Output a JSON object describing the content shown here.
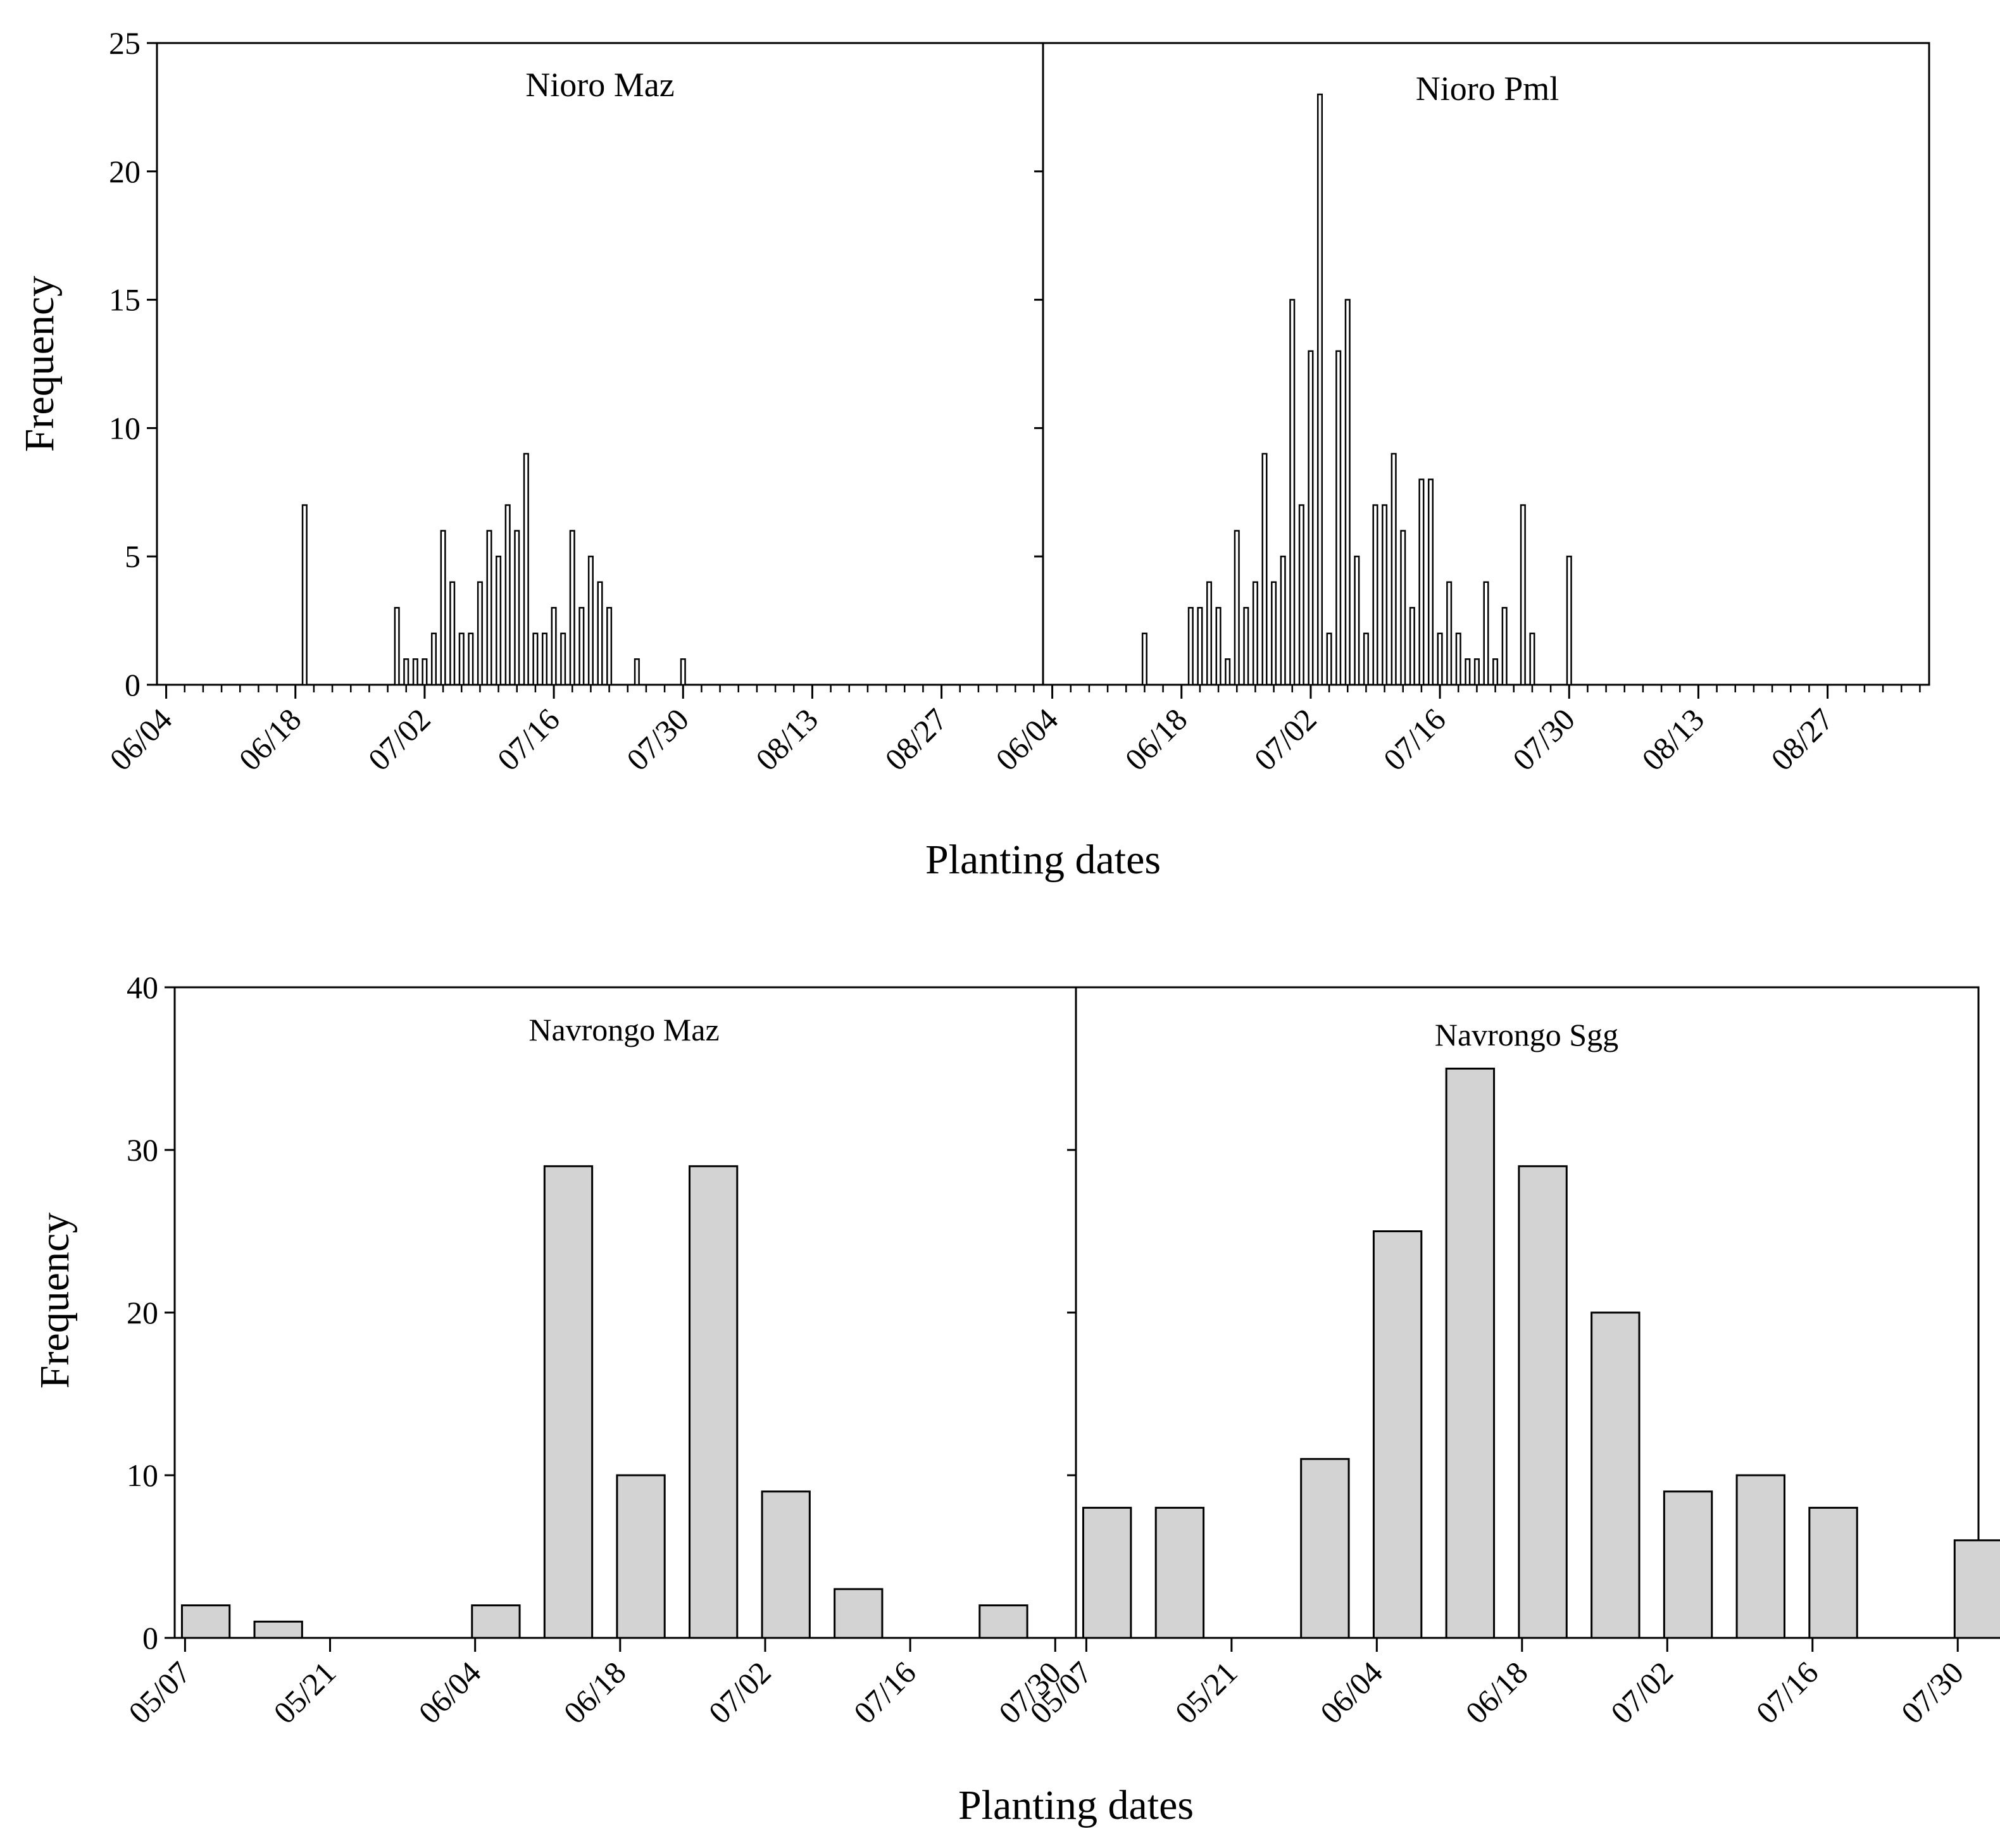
{
  "chart_data": [
    {
      "type": "bar",
      "ylabel": "Frequency",
      "xlabel": "Planting dates",
      "ylim": [
        0,
        25
      ],
      "yticks": [
        0,
        5,
        10,
        15,
        20,
        25
      ],
      "day_range": [
        154,
        250
      ],
      "x_tick_labels": [
        {
          "label": "06/04",
          "day": 155
        },
        {
          "label": "06/18",
          "day": 169
        },
        {
          "label": "07/02",
          "day": 183
        },
        {
          "label": "07/16",
          "day": 197
        },
        {
          "label": "07/30",
          "day": 211
        },
        {
          "label": "08/13",
          "day": 225
        },
        {
          "label": "08/27",
          "day": 239
        }
      ],
      "panels": [
        {
          "title": "Nioro Maz",
          "bars": [
            {
              "day": 170,
              "value": 7
            },
            {
              "day": 180,
              "value": 3
            },
            {
              "day": 181,
              "value": 1
            },
            {
              "day": 182,
              "value": 1
            },
            {
              "day": 183,
              "value": 1
            },
            {
              "day": 184,
              "value": 2
            },
            {
              "day": 185,
              "value": 6
            },
            {
              "day": 186,
              "value": 4
            },
            {
              "day": 187,
              "value": 2
            },
            {
              "day": 188,
              "value": 2
            },
            {
              "day": 189,
              "value": 4
            },
            {
              "day": 190,
              "value": 6
            },
            {
              "day": 191,
              "value": 5
            },
            {
              "day": 192,
              "value": 7
            },
            {
              "day": 193,
              "value": 6
            },
            {
              "day": 194,
              "value": 9
            },
            {
              "day": 195,
              "value": 2
            },
            {
              "day": 196,
              "value": 2
            },
            {
              "day": 197,
              "value": 3
            },
            {
              "day": 198,
              "value": 2
            },
            {
              "day": 199,
              "value": 6
            },
            {
              "day": 200,
              "value": 3
            },
            {
              "day": 201,
              "value": 5
            },
            {
              "day": 202,
              "value": 4
            },
            {
              "day": 203,
              "value": 3
            },
            {
              "day": 206,
              "value": 1
            },
            {
              "day": 211,
              "value": 1
            }
          ]
        },
        {
          "title": "Nioro Pml",
          "bars": [
            {
              "day": 165,
              "value": 2
            },
            {
              "day": 170,
              "value": 3
            },
            {
              "day": 171,
              "value": 3
            },
            {
              "day": 172,
              "value": 4
            },
            {
              "day": 173,
              "value": 3
            },
            {
              "day": 174,
              "value": 1
            },
            {
              "day": 175,
              "value": 6
            },
            {
              "day": 176,
              "value": 3
            },
            {
              "day": 177,
              "value": 4
            },
            {
              "day": 178,
              "value": 9
            },
            {
              "day": 179,
              "value": 4
            },
            {
              "day": 180,
              "value": 5
            },
            {
              "day": 181,
              "value": 15
            },
            {
              "day": 182,
              "value": 7
            },
            {
              "day": 183,
              "value": 13
            },
            {
              "day": 184,
              "value": 23
            },
            {
              "day": 185,
              "value": 2
            },
            {
              "day": 186,
              "value": 13
            },
            {
              "day": 187,
              "value": 15
            },
            {
              "day": 188,
              "value": 5
            },
            {
              "day": 189,
              "value": 2
            },
            {
              "day": 190,
              "value": 7
            },
            {
              "day": 191,
              "value": 7
            },
            {
              "day": 192,
              "value": 9
            },
            {
              "day": 193,
              "value": 6
            },
            {
              "day": 194,
              "value": 3
            },
            {
              "day": 195,
              "value": 8
            },
            {
              "day": 196,
              "value": 8
            },
            {
              "day": 197,
              "value": 2
            },
            {
              "day": 198,
              "value": 4
            },
            {
              "day": 199,
              "value": 2
            },
            {
              "day": 200,
              "value": 1
            },
            {
              "day": 201,
              "value": 1
            },
            {
              "day": 202,
              "value": 4
            },
            {
              "day": 203,
              "value": 1
            },
            {
              "day": 204,
              "value": 3
            },
            {
              "day": 206,
              "value": 7
            },
            {
              "day": 207,
              "value": 2
            },
            {
              "day": 211,
              "value": 5
            }
          ]
        }
      ]
    },
    {
      "type": "bar",
      "ylabel": "Frequency",
      "xlabel": "Planting dates",
      "ylim": [
        0,
        40
      ],
      "yticks": [
        0,
        10,
        20,
        30,
        40
      ],
      "day_range": [
        126,
        213
      ],
      "x_tick_labels": [
        {
          "label": "05/07",
          "day": 127
        },
        {
          "label": "05/21",
          "day": 141
        },
        {
          "label": "06/04",
          "day": 155
        },
        {
          "label": "06/18",
          "day": 169
        },
        {
          "label": "07/02",
          "day": 183
        },
        {
          "label": "07/16",
          "day": 197
        },
        {
          "label": "07/30",
          "day": 211
        }
      ],
      "panels": [
        {
          "title": "Navrongo Maz",
          "bars": [
            {
              "day": 129,
              "value": 2
            },
            {
              "day": 136,
              "value": 1
            },
            {
              "day": 143,
              "value": 0
            },
            {
              "day": 150,
              "value": 0
            },
            {
              "day": 157,
              "value": 2
            },
            {
              "day": 164,
              "value": 29
            },
            {
              "day": 171,
              "value": 10
            },
            {
              "day": 178,
              "value": 29
            },
            {
              "day": 185,
              "value": 9
            },
            {
              "day": 192,
              "value": 3
            },
            {
              "day": 199,
              "value": 0
            },
            {
              "day": 206,
              "value": 2
            }
          ]
        },
        {
          "title": "Navrongo Sgg",
          "bars": [
            {
              "day": 129,
              "value": 8
            },
            {
              "day": 136,
              "value": 8
            },
            {
              "day": 143,
              "value": 0
            },
            {
              "day": 150,
              "value": 11
            },
            {
              "day": 157,
              "value": 25
            },
            {
              "day": 164,
              "value": 35
            },
            {
              "day": 171,
              "value": 29
            },
            {
              "day": 178,
              "value": 20
            },
            {
              "day": 185,
              "value": 9
            },
            {
              "day": 192,
              "value": 10
            },
            {
              "day": 199,
              "value": 8
            },
            {
              "day": 206,
              "value": 0
            },
            {
              "day": 213,
              "value": 6
            }
          ]
        }
      ]
    }
  ]
}
